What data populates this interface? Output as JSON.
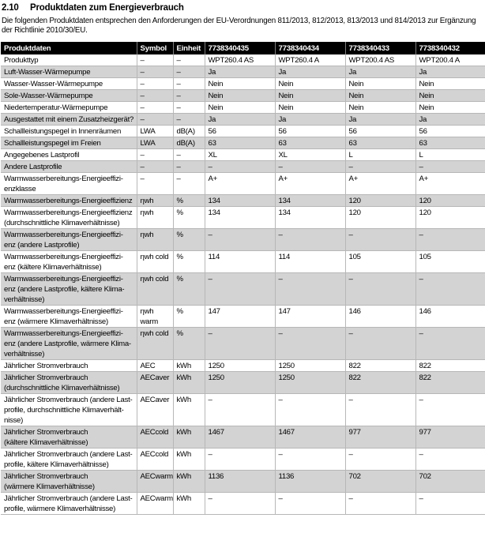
{
  "heading": {
    "number": "2.10",
    "title": "Produktdaten zum Energieverbrauch"
  },
  "intro": "Die folgenden Produktdaten entsprechen den Anforderungen der EU-Verordnungen 811/2013, 812/2013, 813/2013 und 814/2013 zur Ergänzung der Richtlinie 2010/30/EU.",
  "colors": {
    "header_bg": "#000000",
    "row_shade": "#d3d3d3",
    "grid_line": "#b7b7b7"
  },
  "table": {
    "columns": [
      "Produktdaten",
      "Symbol",
      "Einheit",
      "7738340435",
      "7738340434",
      "7738340433",
      "7738340432"
    ],
    "rows": [
      {
        "label": "Produkttyp",
        "symbol": "–",
        "unit": "–",
        "values": [
          "WPT260.4 AS",
          "WPT260.4 A",
          "WPT200.4 AS",
          "WPT200.4 A"
        ]
      },
      {
        "label": "Luft-Wasser-Wärmepumpe",
        "symbol": "–",
        "unit": "–",
        "values": [
          "Ja",
          "Ja",
          "Ja",
          "Ja"
        ]
      },
      {
        "label": "Wasser-Wasser-Wärmepumpe",
        "symbol": "–",
        "unit": "–",
        "values": [
          "Nein",
          "Nein",
          "Nein",
          "Nein"
        ]
      },
      {
        "label": "Sole-Wasser-Wärmepumpe",
        "symbol": "–",
        "unit": "–",
        "values": [
          "Nein",
          "Nein",
          "Nein",
          "Nein"
        ]
      },
      {
        "label": "Niedertemperatur-Wärmepumpe",
        "symbol": "–",
        "unit": "–",
        "values": [
          "Nein",
          "Nein",
          "Nein",
          "Nein"
        ]
      },
      {
        "label": "Ausgestattet mit einem Zusatzheizgerät?",
        "symbol": "–",
        "unit": "–",
        "values": [
          "Ja",
          "Ja",
          "Ja",
          "Ja"
        ]
      },
      {
        "label": "Schallleistungspegel in Innenräumen",
        "symbol": "LWA",
        "unit": "dB(A)",
        "values": [
          "56",
          "56",
          "56",
          "56"
        ]
      },
      {
        "label": "Schallleistungspegel im Freien",
        "symbol": "LWA",
        "unit": "dB(A)",
        "values": [
          "63",
          "63",
          "63",
          "63"
        ]
      },
      {
        "label": "Angegebenes Lastprofil",
        "symbol": "–",
        "unit": "–",
        "values": [
          "XL",
          "XL",
          "L",
          "L"
        ]
      },
      {
        "label": "Andere Lastprofile",
        "symbol": "–",
        "unit": "–",
        "values": [
          "–",
          "–",
          "–",
          "–"
        ]
      },
      {
        "label": "Warmwasserbereitungs-Energieeffizi-\nenzklasse",
        "symbol": "–",
        "unit": "–",
        "values": [
          "A+",
          "A+",
          "A+",
          "A+"
        ]
      },
      {
        "label": "Warmwasserbereitungs-Energieeffizienz",
        "symbol": "ηwh",
        "unit": "%",
        "values": [
          "134",
          "134",
          "120",
          "120"
        ]
      },
      {
        "label": "Warmwasserbereitungs-Energieeffizienz\n(durchschnittliche Klimaverhältnisse)",
        "symbol": "ηwh",
        "unit": "%",
        "values": [
          "134",
          "134",
          "120",
          "120"
        ]
      },
      {
        "label": "Warmwasserbereitungs-Energieeffizi-\nenz (andere Lastprofile)",
        "symbol": "ηwh",
        "unit": "%",
        "values": [
          "–",
          "–",
          "–",
          "–"
        ]
      },
      {
        "label": "Warmwasserbereitungs-Energieeffizi-\nenz (kältere Klimaverhältnisse)",
        "symbol": "ηwh cold",
        "unit": "%",
        "values": [
          "114",
          "114",
          "105",
          "105"
        ]
      },
      {
        "label": "Warmwasserbereitungs-Energieeffizi-\nenz (andere Lastprofile, kältere Klima-\nverhältnisse)",
        "symbol": "ηwh cold",
        "unit": "%",
        "values": [
          "–",
          "–",
          "–",
          "–"
        ]
      },
      {
        "label": "Warmwasserbereitungs-Energieeffizi-\nenz (wärmere Klimaverhältnisse)",
        "symbol": "ηwh warm",
        "unit": "%",
        "values": [
          "147",
          "147",
          "146",
          "146"
        ]
      },
      {
        "label": "Warmwasserbereitungs-Energieeffizi-\nenz (andere Lastprofile, wärmere Klima-\nverhältnisse)",
        "symbol": "ηwh cold",
        "unit": "%",
        "values": [
          "–",
          "–",
          "–",
          "–"
        ]
      },
      {
        "label": "Jährlicher Stromverbrauch",
        "symbol": "AEC",
        "unit": "kWh",
        "values": [
          "1250",
          "1250",
          "822",
          "822"
        ]
      },
      {
        "label": "Jährlicher Stromverbrauch\n(durchschnittliche Klimaverhältnisse)",
        "symbol": "AECaver",
        "unit": "kWh",
        "values": [
          "1250",
          "1250",
          "822",
          "822"
        ]
      },
      {
        "label": "Jährlicher Stromverbrauch (andere Last-\nprofile, durchschnittliche Klimaverhält-\nnisse)",
        "symbol": "AECaver",
        "unit": "kWh",
        "values": [
          "–",
          "–",
          "–",
          "–"
        ]
      },
      {
        "label": "Jährlicher Stromverbrauch\n(kältere Klimaverhältnisse)",
        "symbol": "AECcold",
        "unit": "kWh",
        "values": [
          "1467",
          "1467",
          "977",
          "977"
        ]
      },
      {
        "label": "Jährlicher Stromverbrauch (andere Last-\nprofile, kältere Klimaverhältnisse)",
        "symbol": "AECcold",
        "unit": "kWh",
        "values": [
          "–",
          "–",
          "–",
          "–"
        ]
      },
      {
        "label": "Jährlicher Stromverbrauch\n(wärmere Klimaverhältnisse)",
        "symbol": "AECwarm",
        "unit": "kWh",
        "values": [
          "1136",
          "1136",
          "702",
          "702"
        ]
      },
      {
        "label": "Jährlicher Stromverbrauch (andere Last-\nprofile, wärmere Klimaverhältnisse)",
        "symbol": "AECwarm",
        "unit": "kWh",
        "values": [
          "–",
          "–",
          "–",
          "–"
        ]
      }
    ]
  }
}
